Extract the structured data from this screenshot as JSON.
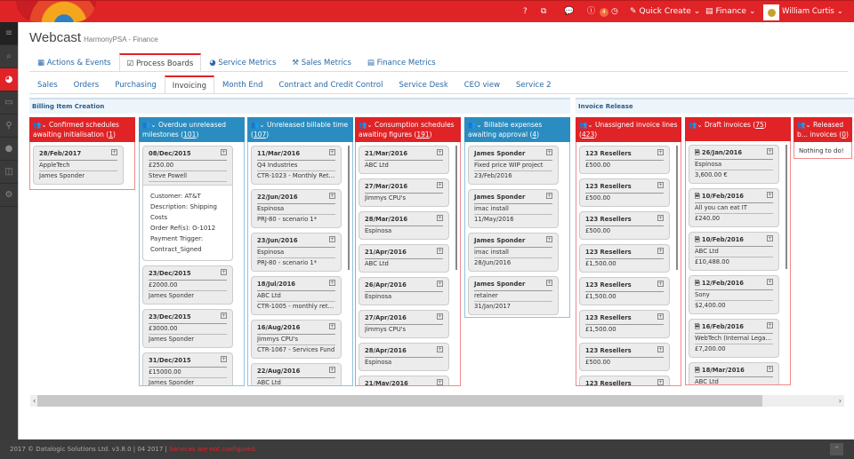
{
  "topbar": {
    "help": "?",
    "info_badge": "4",
    "quick_create": "Quick Create",
    "finance": "Finance",
    "user": "William Curtis",
    "colors": {
      "brand": "#e02326",
      "blue": "#2a8cc0"
    }
  },
  "header": {
    "title": "Webcast",
    "subtitle": "HarmonyPSA - Finance"
  },
  "main_tabs": [
    {
      "label": "Actions & Events",
      "icon": "calendar-icon"
    },
    {
      "label": "Process Boards",
      "icon": "checkbox-icon",
      "active": true
    },
    {
      "label": "Service Metrics",
      "icon": "dashboard-icon"
    },
    {
      "label": "Sales Metrics",
      "icon": "gavel-icon"
    },
    {
      "label": "Finance Metrics",
      "icon": "book-icon"
    }
  ],
  "sub_tabs": [
    "Sales",
    "Orders",
    "Purchasing",
    "Invoicing",
    "Month End",
    "Contract and Credit Control",
    "Service Desk",
    "CEO view",
    "Service 2"
  ],
  "sections": {
    "billing": "Billing Item Creation",
    "release": "Invoice Release"
  },
  "columns": [
    {
      "title": "Confirmed schedules awaiting initialisation",
      "count": "1",
      "color": "red",
      "cards": [
        [
          "28/Feb/2017",
          "AppleTech",
          "James Sponder"
        ]
      ]
    },
    {
      "title": "Overdue unreleased milestones",
      "count": "101",
      "color": "blue",
      "cards": [
        [
          "08/Dec/2015",
          "£250.00",
          "Steve Powell"
        ],
        [
          "23/Dec/2015",
          "£2000.00",
          "James Sponder"
        ],
        [
          "23/Dec/2015",
          "£3000.00",
          "James Sponder"
        ],
        [
          "31/Dec/2015",
          "£15000.00",
          "James Sponder"
        ]
      ],
      "details": [
        "Customer: AT&T",
        "Description: Shipping Costs",
        "Order Ref(s): O-1012",
        "Payment Trigger: Contract_Signed"
      ]
    },
    {
      "title": "Unreleased billable time",
      "count": "107",
      "color": "blue",
      "cards": [
        [
          "11/Mar/2016",
          "Q4 Industries",
          "CTR-1023 - Monthly Retainer..."
        ],
        [
          "22/Jun/2016",
          "Espinosa",
          "PRJ-80 - scenario 1*"
        ],
        [
          "23/Jun/2016",
          "Espinosa",
          "PRJ-80 - scenario 1*"
        ],
        [
          "18/Jul/2016",
          "ABC Ltd",
          "CTR-1005 - monthly retainer..."
        ],
        [
          "16/Aug/2016",
          "Jimmys CPU's",
          "CTR-1067 - Services Fund"
        ],
        [
          "22/Aug/2016",
          "ABC Ltd",
          ""
        ]
      ]
    },
    {
      "title": "Consumption schedules awaiting figures",
      "count": "191",
      "color": "red",
      "cards": [
        [
          "21/Mar/2016",
          "ABC Ltd"
        ],
        [
          "27/Mar/2016",
          "Jimmys CPU's"
        ],
        [
          "28/Mar/2016",
          "Espinosa"
        ],
        [
          "21/Apr/2016",
          "ABC Ltd"
        ],
        [
          "26/Apr/2016",
          "Espinosa"
        ],
        [
          "27/Apr/2016",
          "Jimmys CPU's"
        ],
        [
          "28/Apr/2016",
          "Espinosa"
        ],
        [
          "21/May/2016",
          ""
        ]
      ]
    },
    {
      "title": "Billable expenses awaiting approval",
      "count": "4",
      "color": "blue",
      "cards": [
        [
          "James Sponder",
          "Fixed price WIP project",
          "23/Feb/2016"
        ],
        [
          "James Sponder",
          "imac install",
          "11/May/2016"
        ],
        [
          "James Sponder",
          "imac install",
          "28/Jun/2016"
        ],
        [
          "James Sponder",
          "retainer",
          "31/Jan/2017"
        ]
      ]
    },
    {
      "title": "Unassigned invoice lines",
      "count": "423",
      "color": "red",
      "cards": [
        [
          "123 Resellers",
          "£500.00"
        ],
        [
          "123 Resellers",
          "£500.00"
        ],
        [
          "123 Resellers",
          "£500.00"
        ],
        [
          "123 Resellers",
          "£1,500.00"
        ],
        [
          "123 Resellers",
          "£1,500.00"
        ],
        [
          "123 Resellers",
          "£1,500.00"
        ],
        [
          "123 Resellers",
          "£500.00"
        ],
        [
          "123 Resellers",
          ""
        ]
      ]
    },
    {
      "title": "Draft invoices",
      "count": "75",
      "color": "red",
      "doc": true,
      "cards": [
        [
          "26/Jan/2016",
          "Espinosa",
          "3,600.00 €"
        ],
        [
          "10/Feb/2016",
          "All you can eat IT",
          "£240.00"
        ],
        [
          "10/Feb/2016",
          "ABC Ltd",
          "£10,488.00"
        ],
        [
          "12/Feb/2016",
          "Sony",
          "$2,400.00"
        ],
        [
          "16/Feb/2016",
          "WebTech (Internal Legal En...",
          "£7,200.00"
        ],
        [
          "18/Mar/2016",
          "ABC Ltd",
          ""
        ]
      ]
    },
    {
      "title": "Released b... invoices",
      "count": "0",
      "color": "red",
      "cards": [],
      "empty": "Nothing to do!"
    }
  ],
  "footer": {
    "text": "2017 © Datalogic Solutions Ltd. v3.8.0 | 04 2017 |",
    "warning": "Services are not configured."
  }
}
